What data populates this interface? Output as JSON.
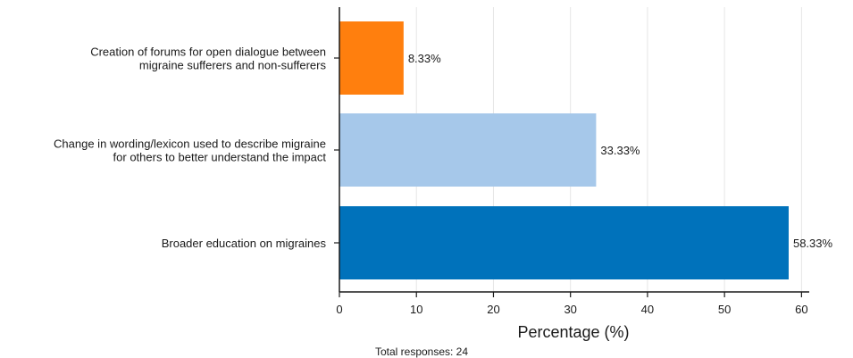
{
  "chart_data": {
    "type": "bar",
    "orientation": "horizontal",
    "categories": [
      [
        "Creation of forums for open dialogue between",
        "migraine sufferers and non-sufferers"
      ],
      [
        "Change in wording/lexicon used to describe migraine",
        "for others to better understand the impact"
      ],
      [
        "Broader education on migraines"
      ]
    ],
    "values": [
      8.33,
      33.33,
      58.33
    ],
    "value_labels": [
      "8.33%",
      "33.33%",
      "58.33%"
    ],
    "colors": [
      "#ff7f0e",
      "#a6c8ea",
      "#0072bb"
    ],
    "xlabel": "Percentage (%)",
    "xlim": [
      0,
      61
    ],
    "xticks": [
      0,
      10,
      20,
      30,
      40,
      50,
      60
    ],
    "grid": "vertical",
    "legend": "none",
    "footnote": "Total responses: 24"
  }
}
